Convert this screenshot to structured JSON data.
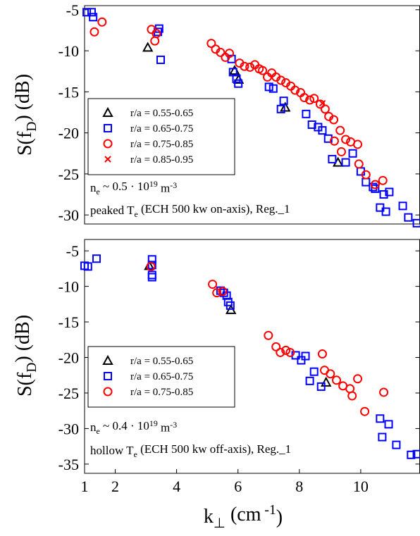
{
  "chart_data": [
    {
      "type": "scatter",
      "ylabel": [
        "S(f",
        "D",
        ") (dB)"
      ],
      "xlim": [
        1,
        11.92
      ],
      "ylim": [
        -31.1,
        -4.5
      ],
      "yticks": [
        -5,
        -10,
        -15,
        -20,
        -25,
        -30
      ],
      "legend": "left",
      "annotations": [
        [
          "n",
          "e",
          " ~ 0.5 · 10",
          "19",
          " m",
          "-3"
        ],
        [
          "peaked T",
          "e",
          " (ECH 500 kw on-axis), Reg._1"
        ]
      ],
      "series": [
        {
          "name": "r/a = 0.55-0.65",
          "color": "#000000",
          "marker": "triangle",
          "x": [
            3.06,
            5.89,
            6.02,
            7.54,
            9.26
          ],
          "y": [
            -9.6,
            -12.4,
            -13.5,
            -16.9,
            -23.6
          ]
        },
        {
          "name": "r/a = 0.65-0.75",
          "color": "#0000ff",
          "marker": "square",
          "x": [
            1.07,
            1.23,
            1.28,
            3.43,
            3.39,
            3.48,
            5.79,
            5.84,
            5.95,
            6.01,
            7.01,
            7.15,
            7.49,
            7.4,
            8.22,
            8.41,
            8.61,
            8.75,
            8.94,
            9.07,
            9.51,
            9.74,
            10.0,
            10.17,
            10.4,
            10.47,
            10.75,
            10.93,
            10.63,
            10.82,
            11.37,
            11.55,
            11.83
          ],
          "y": [
            -5.3,
            -5.3,
            -5.9,
            -7.3,
            -7.7,
            -11.1,
            -11.0,
            -12.6,
            -13.4,
            -14.0,
            -14.4,
            -14.6,
            -16.1,
            -17.1,
            -17.7,
            -19.0,
            -19.3,
            -19.7,
            -20.7,
            -23.2,
            -23.6,
            -22.5,
            -24.7,
            -26.0,
            -26.6,
            -26.8,
            -27.5,
            -27.2,
            -29.1,
            -29.6,
            -28.9,
            -30.3,
            -31.0
          ]
        },
        {
          "name": "r/a = 0.75-0.85",
          "color": "#ff0000",
          "marker": "circle",
          "x": [
            1.32,
            1.57,
            3.18,
            3.34,
            3.29,
            5.13,
            5.27,
            5.43,
            5.59,
            5.72,
            6.05,
            6.21,
            6.39,
            6.55,
            6.69,
            6.8,
            6.96,
            7.1,
            7.24,
            7.4,
            7.56,
            7.72,
            7.86,
            8.04,
            8.16,
            8.34,
            8.48,
            8.68,
            8.84,
            8.96,
            9.12,
            9.33,
            9.14,
            9.37,
            9.51,
            9.67,
            9.9,
            9.94,
            10.17,
            10.47,
            10.72
          ],
          "y": [
            -7.7,
            -6.5,
            -7.4,
            -7.9,
            -8.8,
            -9.1,
            -9.8,
            -10.2,
            -10.8,
            -10.3,
            -11.5,
            -11.9,
            -12.0,
            -11.7,
            -12.2,
            -12.4,
            -13.2,
            -12.7,
            -13.2,
            -13.6,
            -13.9,
            -14.3,
            -14.8,
            -15.1,
            -15.7,
            -16.0,
            -15.8,
            -16.5,
            -17.1,
            -18.0,
            -18.4,
            -19.7,
            -21.0,
            -22.3,
            -20.8,
            -21.1,
            -21.4,
            -23.8,
            -25.1,
            -26.3,
            -25.8
          ]
        },
        {
          "name": "r/a = 0.85-0.95",
          "color": "#ff0000",
          "marker": "cross",
          "x": [
            8.75
          ],
          "y": [
            -16.4
          ]
        }
      ]
    },
    {
      "type": "scatter",
      "ylabel": [
        "S(f",
        "D",
        ") (dB)"
      ],
      "xlabel": [
        "k",
        "⊥",
        " (cm",
        " -1",
        ")"
      ],
      "xlim": [
        1,
        11.92
      ],
      "ylim": [
        -36.3,
        -3.4
      ],
      "yticks": [
        -5,
        -10,
        -15,
        -20,
        -25,
        -30,
        -35
      ],
      "xticks": [
        1,
        2,
        4,
        6,
        8,
        10
      ],
      "legend": "left",
      "annotations": [
        [
          "n",
          "e",
          " ~ 0.4 · 10",
          "19",
          " m",
          "-3"
        ],
        [
          "hollow T",
          "e",
          " (ECH 500 kw off-axis), Reg._1"
        ]
      ],
      "series": [
        {
          "name": "r/a = 0.55-0.65",
          "color": "#000000",
          "marker": "triangle",
          "x": [
            3.11,
            5.77,
            8.87
          ],
          "y": [
            -7.1,
            -13.3,
            -23.5
          ]
        },
        {
          "name": "r/a = 0.65-0.75",
          "color": "#0000ff",
          "marker": "square",
          "x": [
            1.0,
            1.11,
            1.39,
            3.2,
            3.2,
            3.2,
            3.2,
            5.43,
            5.54,
            5.63,
            5.68,
            5.75,
            7.88,
            8.06,
            8.2,
            8.34,
            8.48,
            8.71,
            10.63,
            10.91,
            10.7,
            11.16,
            11.64,
            11.83
          ],
          "y": [
            -7.1,
            -7.2,
            -6.1,
            -6.2,
            -7.0,
            -8.4,
            -8.7,
            -10.6,
            -10.9,
            -11.3,
            -12.2,
            -12.7,
            -19.7,
            -20.4,
            -19.8,
            -23.3,
            -22.0,
            -24.1,
            -28.6,
            -29.4,
            -31.2,
            -32.3,
            -33.7,
            -33.6
          ]
        },
        {
          "name": "r/a = 0.75-0.85",
          "color": "#ff0000",
          "marker": "circle",
          "x": [
            3.16,
            5.17,
            5.31,
            5.5,
            6.99,
            7.24,
            7.38,
            7.56,
            7.7,
            8.75,
            8.82,
            9.01,
            9.21,
            9.42,
            9.65,
            9.72,
            9.9,
            10.13,
            10.75
          ],
          "y": [
            -7.2,
            -9.7,
            -10.9,
            -10.7,
            -16.9,
            -18.5,
            -19.3,
            -19.0,
            -19.3,
            -19.5,
            -21.8,
            -22.3,
            -23.2,
            -24.0,
            -24.4,
            -25.4,
            -23.0,
            -27.6,
            -24.9
          ]
        }
      ]
    }
  ]
}
